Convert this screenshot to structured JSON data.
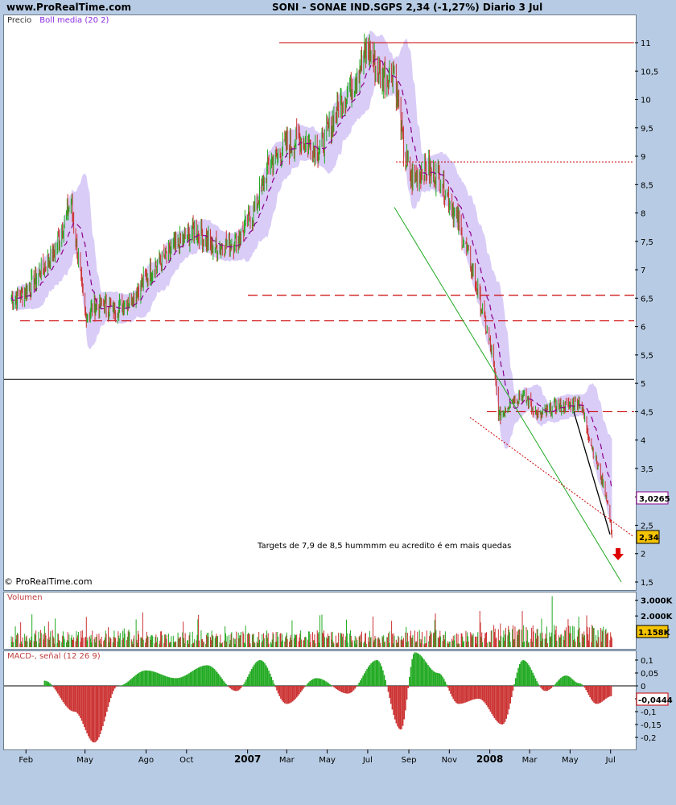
{
  "header": {
    "site": "www.ProRealTime.com",
    "title": "SONI - SONAE IND.SGPS    2,34 (-1,27%)   Diario  3 Jul"
  },
  "price_panel": {
    "label": "Precio",
    "indicator": "Boll media (20 2)",
    "copyright": "© ProRealTime.com",
    "annotation": "Targets de 7,9 de 8,5 hummmm eu acredito é em mais quedas",
    "mid_badge": "3,0265",
    "last_badge": "2,34"
  },
  "volume_panel": {
    "label": "Volumen",
    "last_badge": "1.158K"
  },
  "macd_panel": {
    "label": "MACD-, señal (12 26 9)",
    "last_badge": "-0,0444"
  },
  "x_axis": [
    "Feb",
    "May",
    "Ago",
    "Oct",
    "2007",
    "Mar",
    "May",
    "Jul",
    "Sep",
    "Nov",
    "2008",
    "Mar",
    "May",
    "Jul"
  ],
  "colors": {
    "up": "#22aa22",
    "down": "#cc3333",
    "band": "#d9ccf7",
    "ma": "#8b008b",
    "hline": "#cc0000",
    "badge": "#f5c400"
  },
  "chart_data": [
    {
      "type": "line",
      "title": "SONI - SONAE IND.SGPS",
      "ylim": [
        1.5,
        11.4
      ],
      "y_ticks": [
        "11",
        "10,5",
        "10",
        "9,5",
        "9",
        "8,5",
        "8",
        "7,5",
        "7",
        "6,5",
        "6",
        "5,5",
        "5",
        "4,5",
        "4",
        "3,5",
        "3",
        "2,5",
        "2",
        "1,5"
      ],
      "series": [
        {
          "name": "Precio",
          "x": [
            "2006-01-10",
            "2006-02-01",
            "2006-03-15",
            "2006-04-10",
            "2006-05-01",
            "2006-05-20",
            "2006-06-15",
            "2006-07-10",
            "2006-08-10",
            "2006-09-15",
            "2006-10-15",
            "2006-11-10",
            "2006-12-15",
            "2007-01-10",
            "2007-02-01",
            "2007-03-01",
            "2007-03-20",
            "2007-04-20",
            "2007-05-15",
            "2007-06-10",
            "2007-07-01",
            "2007-07-20",
            "2007-08-10",
            "2007-08-25",
            "2007-09-05",
            "2007-09-25",
            "2007-10-20",
            "2007-11-15",
            "2007-12-10",
            "2008-01-05",
            "2008-01-15",
            "2008-02-01",
            "2008-02-20",
            "2008-03-15",
            "2008-04-10",
            "2008-05-01",
            "2008-05-15",
            "2008-06-05",
            "2008-06-25",
            "2008-07-03"
          ],
          "values": [
            6.5,
            6.6,
            7.3,
            8.2,
            6.2,
            6.4,
            6.3,
            6.5,
            7.0,
            7.4,
            7.7,
            7.4,
            7.5,
            8.0,
            8.8,
            9.2,
            9.3,
            9.1,
            9.8,
            10.3,
            10.9,
            10.4,
            10.5,
            9.0,
            8.6,
            8.8,
            8.6,
            7.8,
            6.8,
            5.5,
            4.4,
            4.7,
            4.8,
            4.4,
            4.6,
            4.6,
            4.7,
            3.8,
            3.0,
            2.34
          ]
        }
      ],
      "hlines": [
        11.0,
        8.9,
        6.55,
        6.1,
        5.07,
        4.5
      ]
    },
    {
      "type": "bar",
      "title": "Volumen",
      "y_ticks": [
        "3.000K",
        "2.000K",
        "1.158K"
      ],
      "ylim": [
        0,
        3500
      ]
    },
    {
      "type": "bar",
      "title": "MACD-, señal (12 26 9)",
      "y_ticks": [
        "0,1",
        "0,05",
        "0",
        "-0,05",
        "-0,1",
        "-0,15",
        "-0,2"
      ],
      "ylim": [
        -0.24,
        0.15
      ],
      "series": [
        {
          "name": "MACD",
          "x": [
            "2006-03-01",
            "2006-04-15",
            "2006-05-15",
            "2006-06-20",
            "2006-08-01",
            "2006-09-15",
            "2006-11-01",
            "2006-12-15",
            "2007-01-20",
            "2007-03-01",
            "2007-04-15",
            "2007-06-01",
            "2007-07-15",
            "2007-08-20",
            "2007-09-10",
            "2007-10-15",
            "2007-11-15",
            "2007-12-15",
            "2008-01-20",
            "2008-02-20",
            "2008-03-25",
            "2008-04-25",
            "2008-05-15",
            "2008-06-10",
            "2008-07-03"
          ],
          "values": [
            0.02,
            -0.1,
            -0.22,
            0.0,
            0.06,
            0.03,
            0.08,
            -0.02,
            0.1,
            -0.07,
            0.03,
            -0.03,
            0.1,
            -0.17,
            0.13,
            0.05,
            -0.07,
            -0.05,
            -0.15,
            0.1,
            -0.02,
            0.04,
            0.01,
            -0.07,
            -0.04
          ]
        }
      ]
    }
  ]
}
